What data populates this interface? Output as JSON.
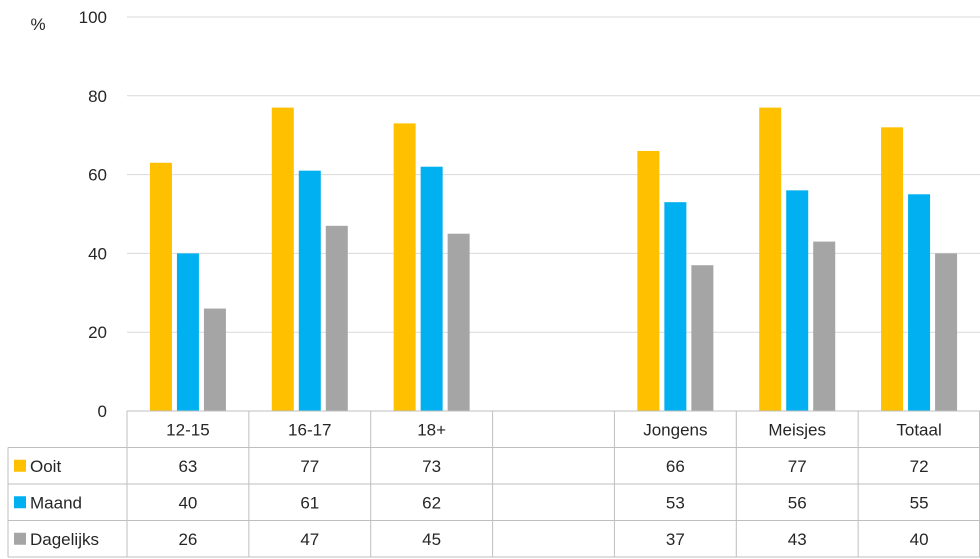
{
  "chart_data": {
    "type": "bar",
    "y_unit": "%",
    "ylim": [
      0,
      100
    ],
    "yticks": [
      0,
      20,
      40,
      60,
      80,
      100
    ],
    "grid": true,
    "legend": "data-table",
    "categories": [
      "12-15",
      "16-17",
      "18+",
      "",
      "Jongens",
      "Meisjes",
      "Totaal"
    ],
    "series": [
      {
        "name": "Ooit",
        "color": "#FFC000",
        "values": [
          63,
          77,
          73,
          null,
          66,
          77,
          72
        ]
      },
      {
        "name": "Maand",
        "color": "#00B0F0",
        "values": [
          40,
          61,
          62,
          null,
          53,
          56,
          55
        ]
      },
      {
        "name": "Dagelijks",
        "color": "#A5A5A5",
        "values": [
          26,
          47,
          45,
          null,
          37,
          43,
          40
        ]
      }
    ]
  }
}
